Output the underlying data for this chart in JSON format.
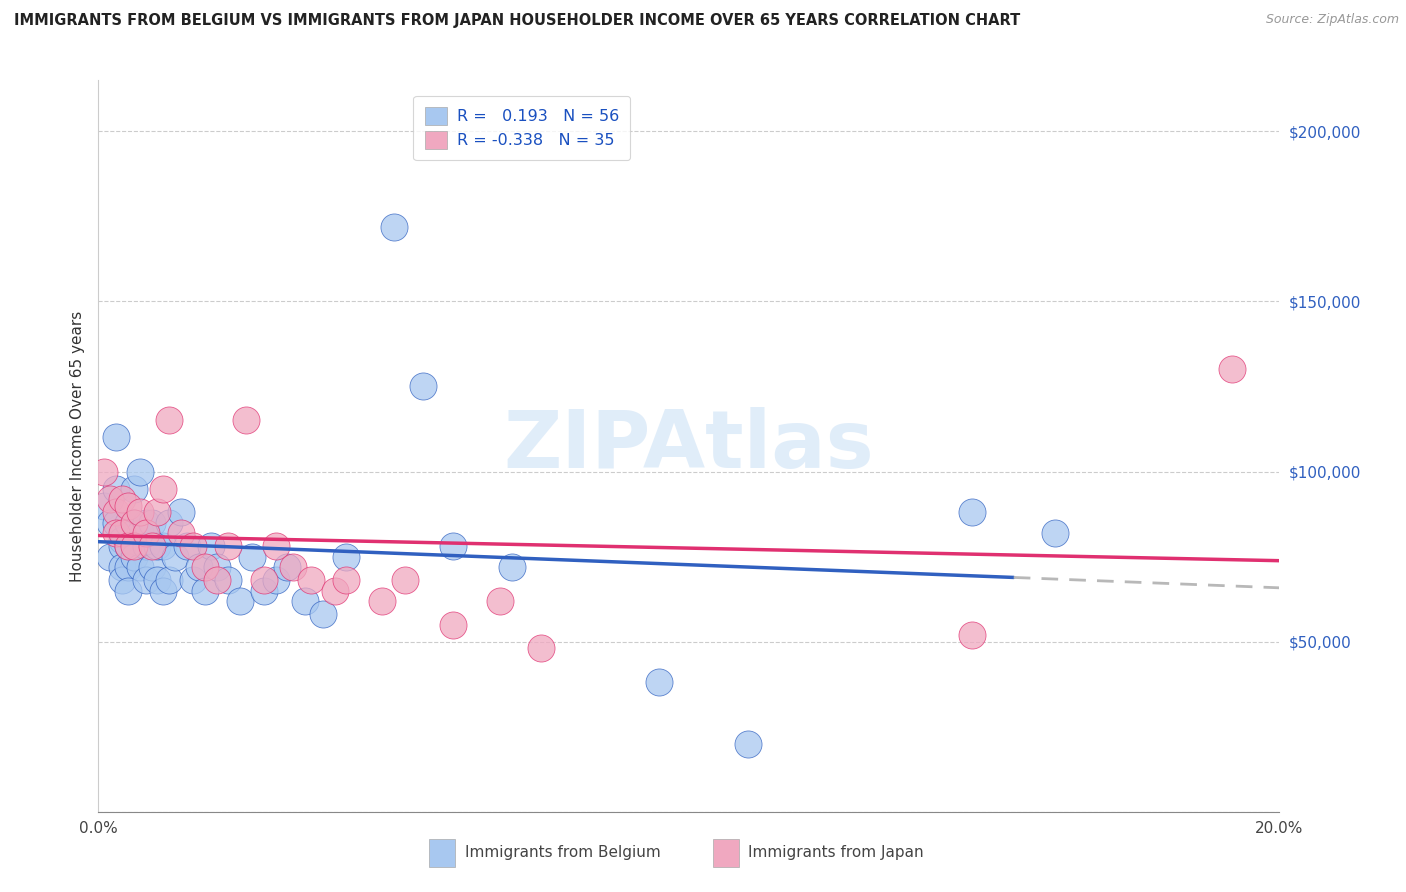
{
  "title": "IMMIGRANTS FROM BELGIUM VS IMMIGRANTS FROM JAPAN HOUSEHOLDER INCOME OVER 65 YEARS CORRELATION CHART",
  "source_text": "Source: ZipAtlas.com",
  "ylabel": "Householder Income Over 65 years",
  "xlim": [
    0.0,
    0.2
  ],
  "ylim": [
    0,
    215000
  ],
  "xtick_positions": [
    0.0,
    0.02,
    0.04,
    0.06,
    0.08,
    0.1,
    0.12,
    0.14,
    0.16,
    0.18,
    0.2
  ],
  "xticklabels": [
    "0.0%",
    "",
    "",
    "",
    "",
    "",
    "",
    "",
    "",
    "",
    "20.0%"
  ],
  "ytick_positions": [
    0,
    50000,
    100000,
    150000,
    200000
  ],
  "ytick_labels": [
    "",
    "$50,000",
    "$100,000",
    "$150,000",
    "$200,000"
  ],
  "watermark": "ZIPAtlas",
  "legend_belgium": "Immigrants from Belgium",
  "legend_japan": "Immigrants from Japan",
  "R_belgium": 0.193,
  "N_belgium": 56,
  "R_japan": -0.338,
  "N_japan": 35,
  "color_belgium": "#a8c8f0",
  "color_japan": "#f0a8c0",
  "color_trend_belgium": "#3060c0",
  "color_trend_japan": "#e03070",
  "color_trend_ext": "#b8b8b8",
  "belgium_x": [
    0.001,
    0.002,
    0.002,
    0.003,
    0.003,
    0.003,
    0.004,
    0.004,
    0.004,
    0.004,
    0.005,
    0.005,
    0.005,
    0.005,
    0.006,
    0.006,
    0.006,
    0.007,
    0.007,
    0.007,
    0.008,
    0.008,
    0.008,
    0.009,
    0.009,
    0.01,
    0.01,
    0.011,
    0.011,
    0.012,
    0.012,
    0.013,
    0.014,
    0.015,
    0.016,
    0.017,
    0.018,
    0.019,
    0.02,
    0.022,
    0.024,
    0.026,
    0.028,
    0.03,
    0.032,
    0.035,
    0.038,
    0.042,
    0.05,
    0.055,
    0.06,
    0.07,
    0.095,
    0.11,
    0.148,
    0.162
  ],
  "belgium_y": [
    90000,
    85000,
    75000,
    110000,
    95000,
    85000,
    80000,
    78000,
    72000,
    68000,
    85000,
    78000,
    72000,
    65000,
    95000,
    85000,
    75000,
    100000,
    82000,
    72000,
    85000,
    78000,
    68000,
    85000,
    72000,
    78000,
    68000,
    65000,
    78000,
    85000,
    68000,
    75000,
    88000,
    78000,
    68000,
    72000,
    65000,
    78000,
    72000,
    68000,
    62000,
    75000,
    65000,
    68000,
    72000,
    62000,
    58000,
    75000,
    172000,
    125000,
    78000,
    72000,
    38000,
    20000,
    88000,
    82000
  ],
  "japan_x": [
    0.001,
    0.002,
    0.003,
    0.003,
    0.004,
    0.004,
    0.005,
    0.005,
    0.006,
    0.006,
    0.007,
    0.008,
    0.009,
    0.01,
    0.011,
    0.012,
    0.014,
    0.016,
    0.018,
    0.02,
    0.022,
    0.025,
    0.028,
    0.03,
    0.033,
    0.036,
    0.04,
    0.042,
    0.048,
    0.052,
    0.06,
    0.068,
    0.075,
    0.148,
    0.192
  ],
  "japan_y": [
    100000,
    92000,
    88000,
    82000,
    92000,
    82000,
    90000,
    78000,
    85000,
    78000,
    88000,
    82000,
    78000,
    88000,
    95000,
    115000,
    82000,
    78000,
    72000,
    68000,
    78000,
    115000,
    68000,
    78000,
    72000,
    68000,
    65000,
    68000,
    62000,
    68000,
    55000,
    62000,
    48000,
    52000,
    130000
  ]
}
